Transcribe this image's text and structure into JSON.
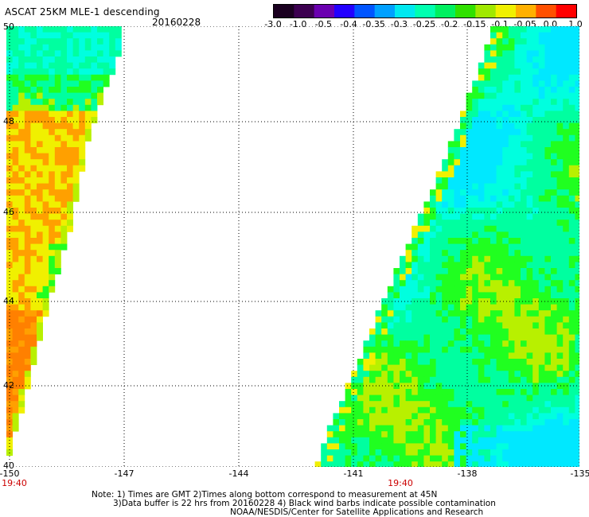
{
  "header": {
    "title": "ASCAT 25KM MLE-1 descending",
    "date": "20160228"
  },
  "colorbar": {
    "labels": [
      "-3.0",
      "-1.0",
      "-0.5",
      "-0.4",
      "-0.35",
      "-0.3",
      "-0.25",
      "-0.2",
      "-0.15",
      "-0.1",
      "-0.05",
      "0.0",
      "1.0"
    ],
    "colors": [
      "#1a0020",
      "#3c0050",
      "#6a00b0",
      "#2200ff",
      "#0055ff",
      "#00a0ff",
      "#00e8f0",
      "#00ffb0",
      "#00f060",
      "#30e000",
      "#a0e800",
      "#f0f000",
      "#ffb000",
      "#ff5000",
      "#ff0000"
    ]
  },
  "map": {
    "lat_labels": [
      "50",
      "48",
      "46",
      "44",
      "42",
      "40"
    ],
    "lon_labels": [
      "-150",
      "-147",
      "-144",
      "-141",
      "-138",
      "-135"
    ],
    "time_labels": [
      "19:40",
      "19:40"
    ],
    "lat_range": [
      40,
      50
    ],
    "lon_range": [
      -150,
      -135
    ],
    "palette": {
      "orange": "#ffa000",
      "dark_orange": "#ff8000",
      "yellow": "#f0f000",
      "yellow_green": "#b8f000",
      "green": "#20ff20",
      "aqua_green": "#00ffa0",
      "cyan": "#00ffdf",
      "light_blue": "#00e8ff"
    }
  },
  "notes": {
    "line1": "Note: 1) Times are GMT 2)Times along bottom correspond to measurement at 45N",
    "line2": "3)Data buffer is 22 hrs from 20160228 4) Black wind barbs indicate possible contamination",
    "line3": "NOAA/NESDIS/Center for Satellite Applications and Research"
  }
}
